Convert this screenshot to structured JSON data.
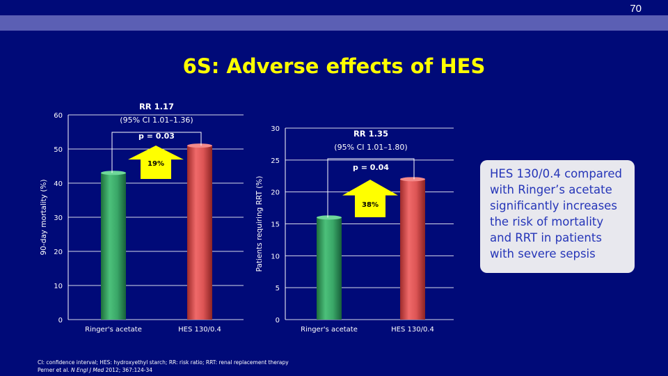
{
  "slide_number": "70",
  "title": "6S: Adverse effects of HES",
  "callout_text": "HES 130/0.4 compared with Ringer’s acetate significantly increases the risk of mortality and RRT in patients with severe sepsis",
  "footnote": {
    "line1": "CI: confidence interval; HES: hydroxyethyl starch; RR: risk ratio; RRT: renal replacement therapy",
    "line2_prefix": "Perner et al. ",
    "line2_journal": "N Engl J Med",
    "line2_suffix": " 2012; 367:124-34"
  },
  "colors": {
    "background": "#000a78",
    "title": "#ffff00",
    "green_bar": "#2e9a5a",
    "red_bar": "#d84c4c",
    "arrow": "#ffff00"
  },
  "chart_data": [
    {
      "type": "bar",
      "categories": [
        "Ringer's acetate",
        "HES 130/0.4"
      ],
      "values": [
        43,
        51
      ],
      "ylabel": "90-day mortality (%)",
      "ylim": [
        0,
        60
      ],
      "yticks": [
        "0",
        "10",
        "20",
        "30",
        "40",
        "50",
        "60"
      ],
      "grid": true,
      "rr_label": "RR 1.17",
      "ci_label": "(95% CI 1.01–1.36)",
      "p_label": "p = 0.03",
      "arrow_label": "19%"
    },
    {
      "type": "bar",
      "categories": [
        "Ringer's acetate",
        "HES 130/0.4"
      ],
      "values": [
        16,
        22
      ],
      "ylabel": "Patients requiring RRT (%)",
      "ylim": [
        0,
        30
      ],
      "yticks": [
        "0",
        "5",
        "10",
        "15",
        "20",
        "25",
        "30"
      ],
      "grid": true,
      "rr_label": "RR 1.35",
      "ci_label": "(95% CI 1.01–1.80)",
      "p_label": "p = 0.04",
      "arrow_label": "38%"
    }
  ]
}
